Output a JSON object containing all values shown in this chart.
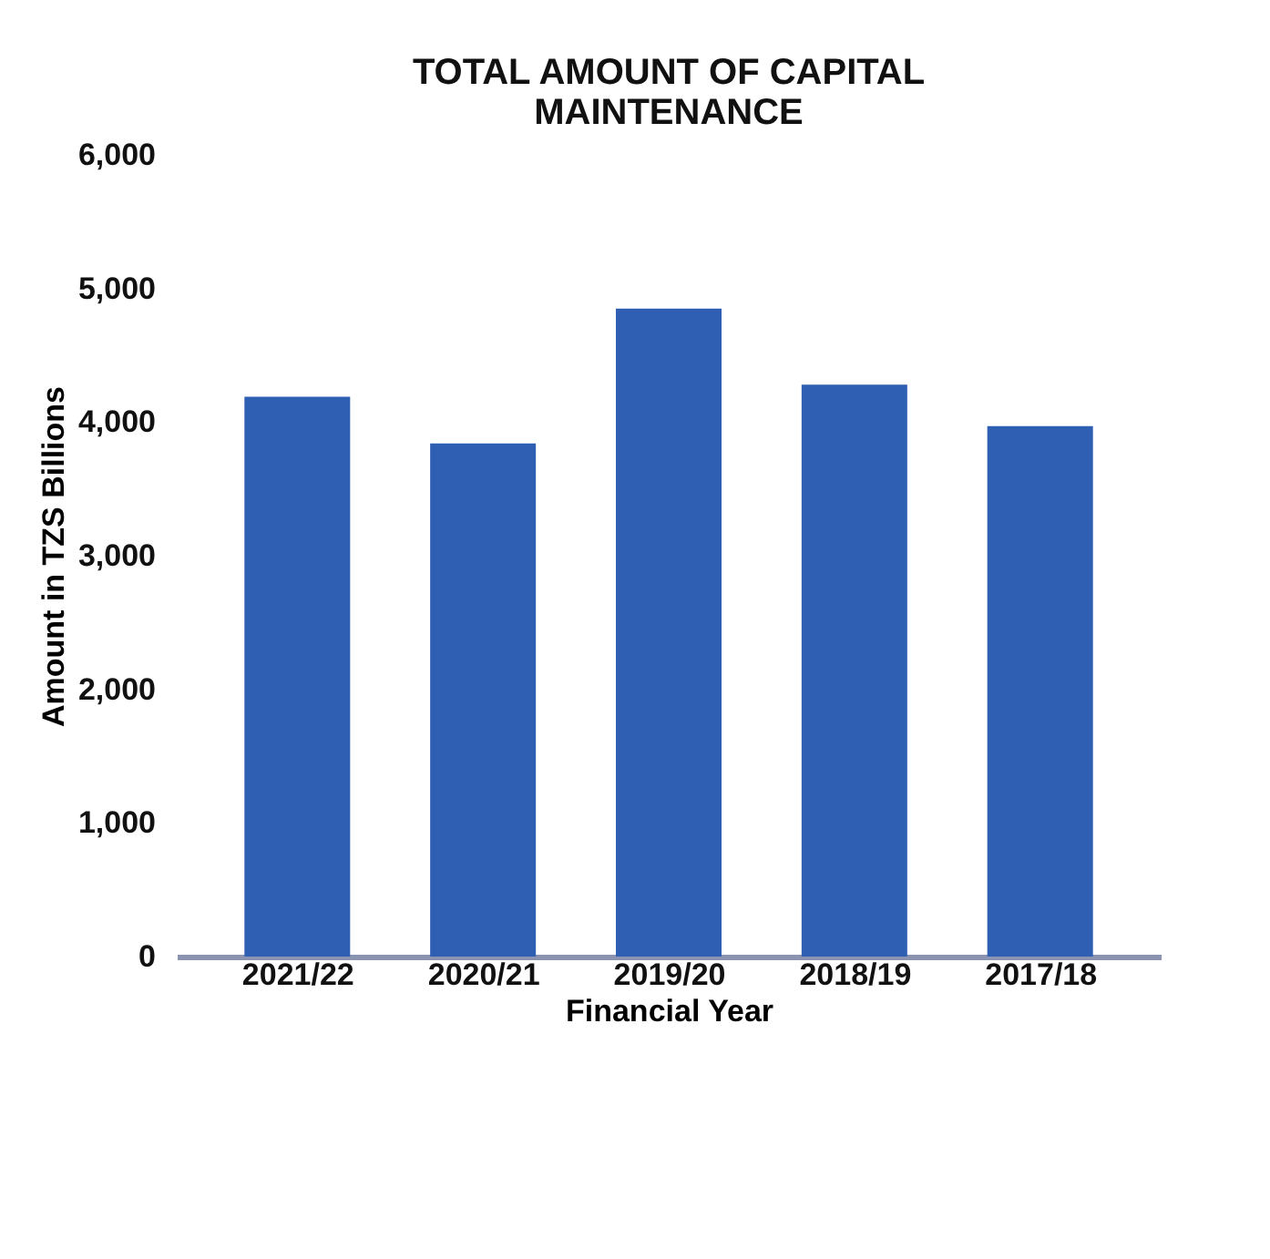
{
  "chart_data": {
    "type": "bar",
    "title": [
      "TOTAL AMOUNT OF CAPITAL",
      "MAINTENANCE"
    ],
    "xlabel": "Financial Year",
    "ylabel": "Amount in TZS Billions",
    "categories": [
      "2021/22",
      "2020/21",
      "2019/20",
      "2018/19",
      "2017/18"
    ],
    "values": [
      4190,
      3840,
      4850,
      4280,
      3970
    ],
    "color": "#2f5fb3",
    "ylim": [
      0,
      6000
    ],
    "yticks": [
      {
        "value": 0,
        "label": "0"
      },
      {
        "value": 1000,
        "label": "1,000"
      },
      {
        "value": 2000,
        "label": "2,000"
      },
      {
        "value": 3000,
        "label": "3,000"
      },
      {
        "value": 4000,
        "label": "4,000"
      },
      {
        "value": 5000,
        "label": "5,000"
      },
      {
        "value": 6000,
        "label": "6,000"
      }
    ],
    "grid": false
  }
}
